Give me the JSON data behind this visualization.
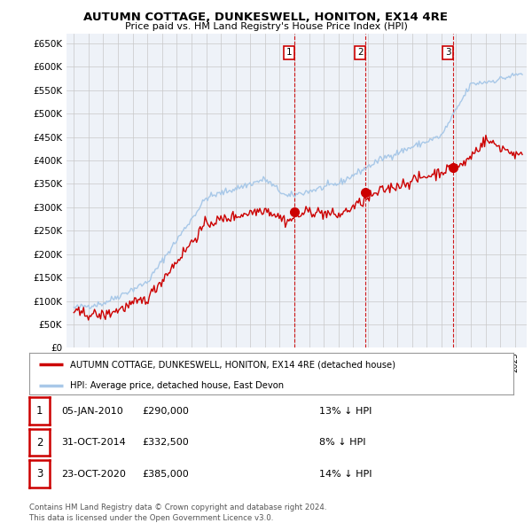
{
  "title": "AUTUMN COTTAGE, DUNKESWELL, HONITON, EX14 4RE",
  "subtitle": "Price paid vs. HM Land Registry's House Price Index (HPI)",
  "ylim": [
    0,
    670000
  ],
  "yticks": [
    0,
    50000,
    100000,
    150000,
    200000,
    250000,
    300000,
    350000,
    400000,
    450000,
    500000,
    550000,
    600000,
    650000
  ],
  "ytick_labels": [
    "£0",
    "£50K",
    "£100K",
    "£150K",
    "£200K",
    "£250K",
    "£300K",
    "£350K",
    "£400K",
    "£450K",
    "£500K",
    "£550K",
    "£600K",
    "£650K"
  ],
  "hpi_color": "#a8c8e8",
  "price_color": "#cc0000",
  "vline_color": "#cc0000",
  "sale_points": [
    {
      "year": 2010.0,
      "price": 290000,
      "label": "1"
    },
    {
      "year": 2014.83,
      "price": 332500,
      "label": "2"
    },
    {
      "year": 2020.8,
      "price": 385000,
      "label": "3"
    }
  ],
  "legend_entries": [
    {
      "label": "AUTUMN COTTAGE, DUNKESWELL, HONITON, EX14 4RE (detached house)",
      "color": "#cc0000"
    },
    {
      "label": "HPI: Average price, detached house, East Devon",
      "color": "#a8c8e8"
    }
  ],
  "table_rows": [
    {
      "num": "1",
      "date": "05-JAN-2010",
      "price": "£290,000",
      "hpi": "13% ↓ HPI"
    },
    {
      "num": "2",
      "date": "31-OCT-2014",
      "price": "£332,500",
      "hpi": "8% ↓ HPI"
    },
    {
      "num": "3",
      "date": "23-OCT-2020",
      "price": "£385,000",
      "hpi": "14% ↓ HPI"
    }
  ],
  "footnote": "Contains HM Land Registry data © Crown copyright and database right 2024.\nThis data is licensed under the Open Government Licence v3.0.",
  "background_color": "#ffffff",
  "plot_bg_color": "#eef2f8"
}
